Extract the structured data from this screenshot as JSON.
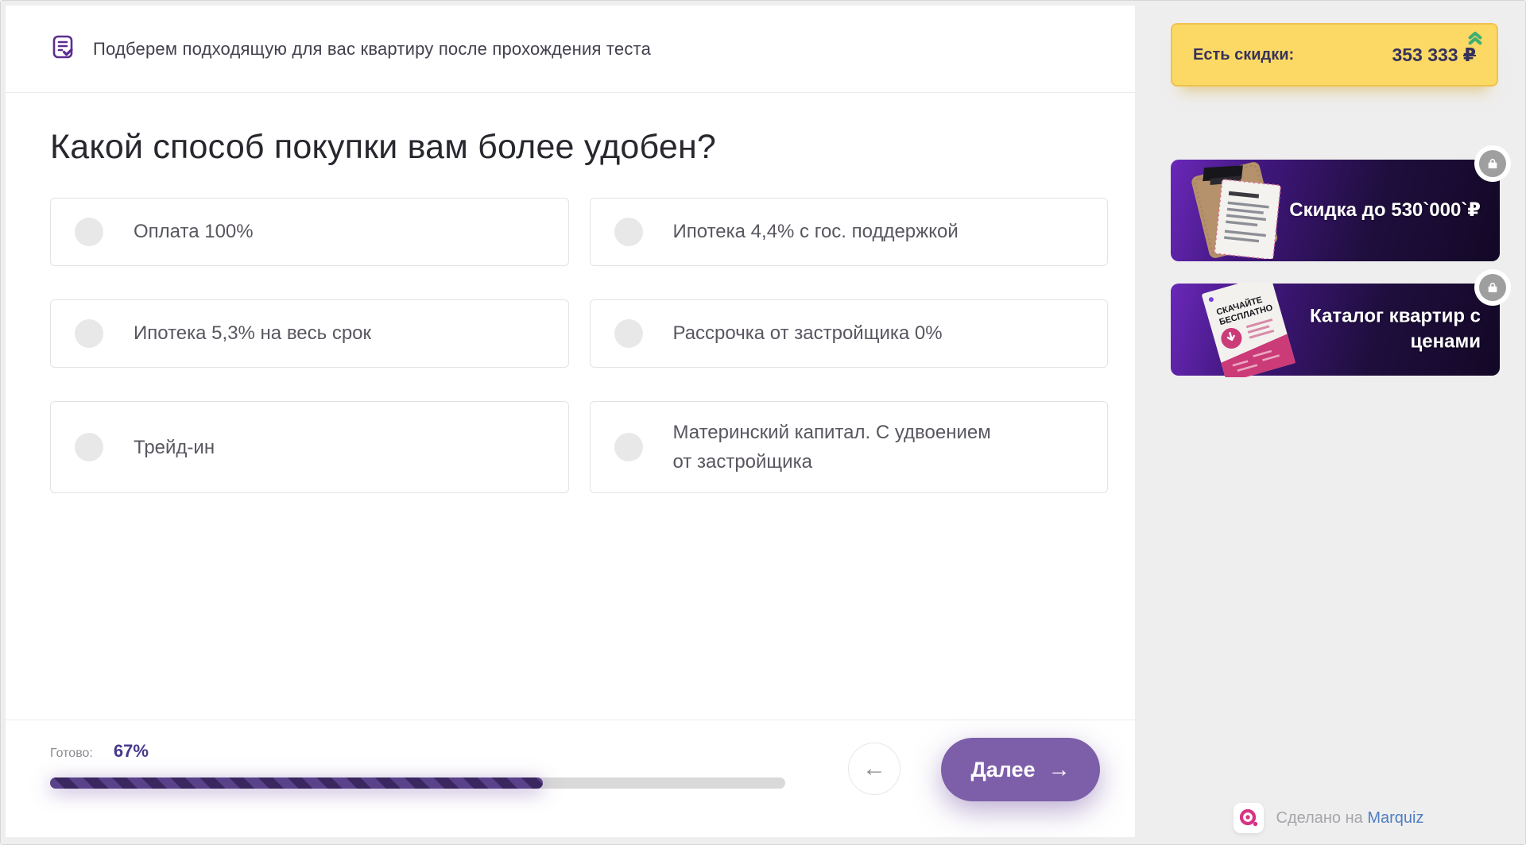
{
  "colors": {
    "accent_purple": "#7d5fa9",
    "progress_purple_dark": "#3a2760",
    "progress_purple_light": "#59428a",
    "discount_yellow": "#fbd964",
    "chevron_green": "#3fae73",
    "banner_gradient_start": "#6a28b8",
    "banner_gradient_end": "#130826",
    "brand_pink": "#d63384",
    "link_blue": "#4e7fc1"
  },
  "header": {
    "icon": "quiz-document-icon",
    "text": "Подберем подходящую для вас квартиру после прохождения теста"
  },
  "question": {
    "title": "Какой способ покупки вам более удобен?",
    "options": [
      {
        "label": "Оплата 100%"
      },
      {
        "label": "Ипотека 4,4% с гос. поддержкой"
      },
      {
        "label": "Ипотека 5,3% на весь срок"
      },
      {
        "label": "Рассрочка от застройщика 0%"
      },
      {
        "label": "Трейд-ин"
      },
      {
        "label": "Материнский капитал. С удвоением от застройщика"
      }
    ]
  },
  "progress": {
    "label": "Готово:",
    "value": "67%",
    "percent": 67
  },
  "nav": {
    "back_icon": "←",
    "next_label": "Далее",
    "next_icon": "→"
  },
  "sidebar": {
    "discount": {
      "label": "Есть скидки:",
      "amount": "353 333",
      "currency": "₽",
      "icon": "double-chevron-up-icon"
    },
    "banners": [
      {
        "title": "Скидка до 530`000`₽",
        "lock_icon": "lock-icon",
        "image": "clipboard-contract"
      },
      {
        "title": "Каталог квартир с ценами",
        "lock_icon": "lock-icon",
        "image": "catalog-brochure",
        "image_text_line1": "СКАЧАЙТЕ",
        "image_text_line2": "БЕСПЛАТНО"
      }
    ],
    "made_on": {
      "prefix": "Сделано на",
      "brand": "Marquiz"
    }
  }
}
